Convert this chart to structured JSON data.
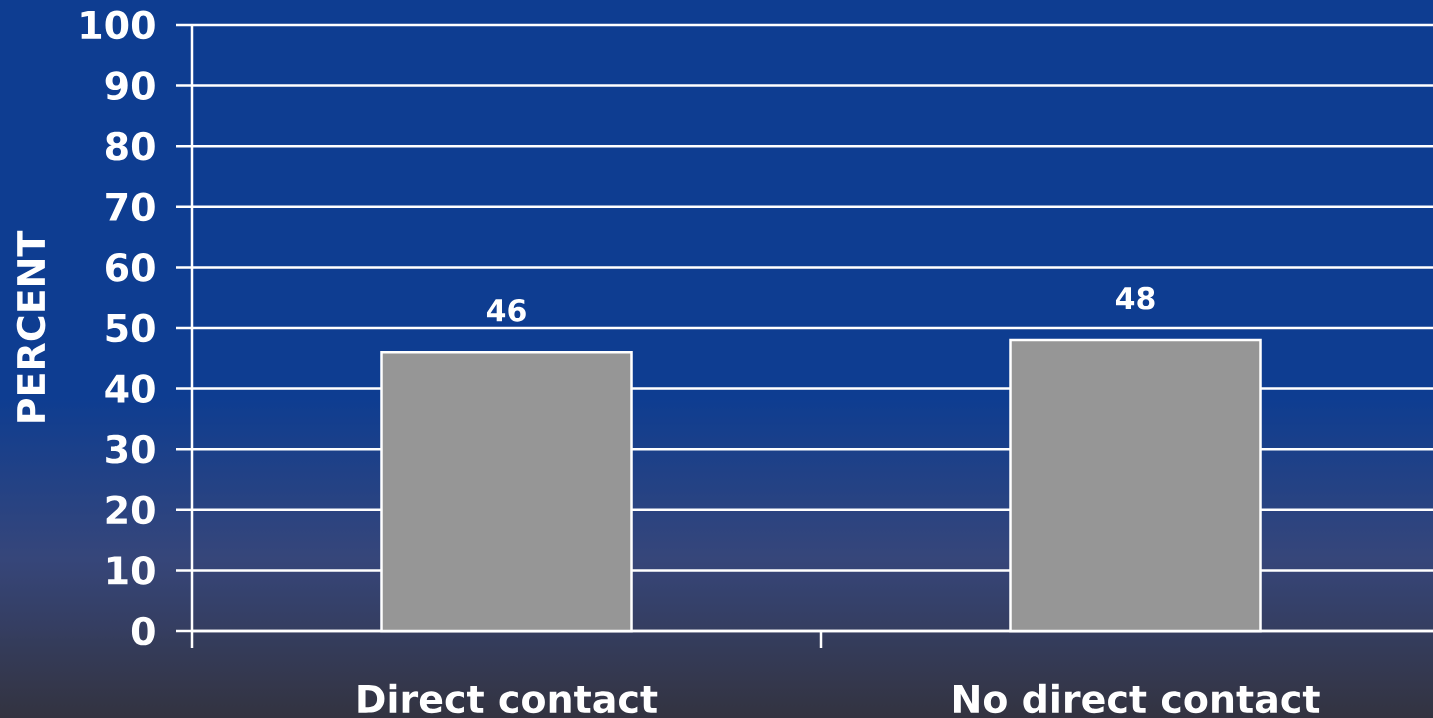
{
  "chart_data": {
    "type": "bar",
    "ylabel": "PERCENT",
    "categories": [
      "Direct contact",
      "No direct contact"
    ],
    "values": [
      46,
      48
    ],
    "color": "#969696",
    "ylim": [
      0,
      100
    ],
    "yticks": [
      0,
      10,
      20,
      30,
      40,
      50,
      60,
      70,
      80,
      90,
      100
    ],
    "grid": "y",
    "data_labels": true
  }
}
